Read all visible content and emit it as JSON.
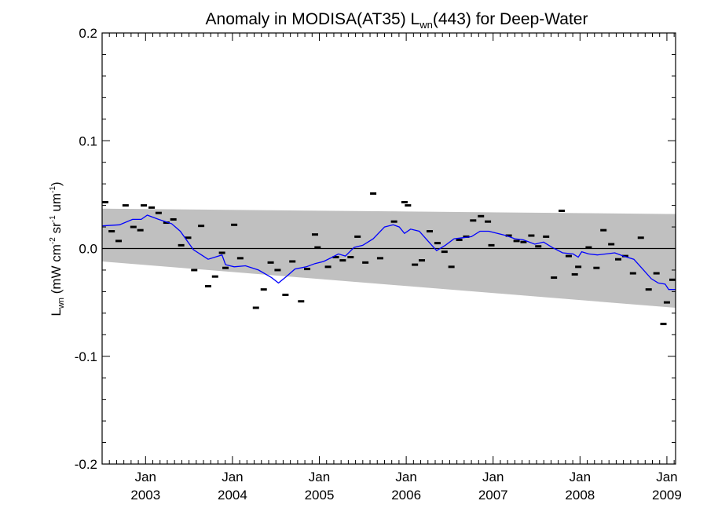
{
  "chart_data": {
    "type": "scatter",
    "title": "Anomaly in MODISA(AT35) L",
    "title_sub": "wn",
    "title_suffix": "(443) for Deep-Water",
    "ylabel_main": "L",
    "ylabel_sub": "wn",
    "ylabel_units": " (mW cm",
    "ylabel_sup1": "-2",
    "ylabel_sr": " sr",
    "ylabel_sup2": "-1",
    "ylabel_um": " um",
    "ylabel_sup3": "-1",
    "ylabel_close": ")",
    "xlim": [
      2002.5,
      2009.1
    ],
    "ylim": [
      -0.2,
      0.2
    ],
    "y_ticks": [
      {
        "value": -0.2,
        "label": "-0.2"
      },
      {
        "value": -0.1,
        "label": "-0.1"
      },
      {
        "value": 0.0,
        "label": "0.0"
      },
      {
        "value": 0.1,
        "label": "0.1"
      },
      {
        "value": 0.2,
        "label": "0.2"
      }
    ],
    "x_ticks": [
      {
        "value": 2003.0,
        "month": "Jan",
        "year": "2003"
      },
      {
        "value": 2004.0,
        "month": "Jan",
        "year": "2004"
      },
      {
        "value": 2005.0,
        "month": "Jan",
        "year": "2005"
      },
      {
        "value": 2006.0,
        "month": "Jan",
        "year": "2006"
      },
      {
        "value": 2007.0,
        "month": "Jan",
        "year": "2007"
      },
      {
        "value": 2008.0,
        "month": "Jan",
        "year": "2008"
      },
      {
        "value": 2009.0,
        "month": "Jan",
        "year": "2009"
      }
    ],
    "zero_line": 0.0,
    "band": {
      "color": "#c0c0c0",
      "upper": [
        [
          2002.5,
          0.037
        ],
        [
          2009.1,
          0.032
        ]
      ],
      "lower": [
        [
          2002.5,
          -0.012
        ],
        [
          2009.1,
          -0.055
        ]
      ]
    },
    "points_color": "#000000",
    "points": [
      [
        2002.52,
        0.043
      ],
      [
        2002.61,
        0.016
      ],
      [
        2002.69,
        0.007
      ],
      [
        2002.77,
        0.04
      ],
      [
        2002.86,
        0.02
      ],
      [
        2002.94,
        0.017
      ],
      [
        2002.98,
        0.04
      ],
      [
        2003.07,
        0.038
      ],
      [
        2003.15,
        0.033
      ],
      [
        2003.24,
        0.024
      ],
      [
        2003.32,
        0.027
      ],
      [
        2003.41,
        0.003
      ],
      [
        2003.49,
        0.01
      ],
      [
        2003.56,
        -0.02
      ],
      [
        2003.64,
        0.021
      ],
      [
        2003.72,
        -0.035
      ],
      [
        2003.8,
        -0.026
      ],
      [
        2003.88,
        -0.004
      ],
      [
        2003.92,
        -0.018
      ],
      [
        2004.02,
        0.022
      ],
      [
        2004.09,
        -0.009
      ],
      [
        2004.27,
        -0.055
      ],
      [
        2004.36,
        -0.038
      ],
      [
        2004.44,
        -0.013
      ],
      [
        2004.52,
        -0.02
      ],
      [
        2004.61,
        -0.043
      ],
      [
        2004.69,
        -0.012
      ],
      [
        2004.79,
        -0.049
      ],
      [
        2004.86,
        -0.019
      ],
      [
        2004.95,
        0.013
      ],
      [
        2004.98,
        0.001
      ],
      [
        2005.1,
        -0.017
      ],
      [
        2005.19,
        -0.008
      ],
      [
        2005.27,
        -0.011
      ],
      [
        2005.36,
        -0.008
      ],
      [
        2005.44,
        0.011
      ],
      [
        2005.53,
        -0.013
      ],
      [
        2005.62,
        0.051
      ],
      [
        2005.7,
        -0.009
      ],
      [
        2005.86,
        0.025
      ],
      [
        2005.98,
        0.043
      ],
      [
        2006.02,
        0.04
      ],
      [
        2006.1,
        -0.015
      ],
      [
        2006.18,
        -0.011
      ],
      [
        2006.27,
        0.016
      ],
      [
        2006.36,
        0.005
      ],
      [
        2006.44,
        -0.003
      ],
      [
        2006.52,
        -0.017
      ],
      [
        2006.61,
        0.008
      ],
      [
        2006.69,
        0.011
      ],
      [
        2006.77,
        0.026
      ],
      [
        2006.86,
        0.03
      ],
      [
        2006.94,
        0.025
      ],
      [
        2006.98,
        0.003
      ],
      [
        2007.18,
        0.012
      ],
      [
        2007.27,
        0.007
      ],
      [
        2007.35,
        0.006
      ],
      [
        2007.44,
        0.012
      ],
      [
        2007.52,
        0.002
      ],
      [
        2007.61,
        0.011
      ],
      [
        2007.7,
        -0.027
      ],
      [
        2007.79,
        0.035
      ],
      [
        2007.87,
        -0.007
      ],
      [
        2007.94,
        -0.024
      ],
      [
        2007.98,
        -0.017
      ],
      [
        2008.1,
        0.001
      ],
      [
        2008.19,
        -0.018
      ],
      [
        2008.27,
        0.017
      ],
      [
        2008.36,
        0.004
      ],
      [
        2008.44,
        -0.01
      ],
      [
        2008.52,
        -0.007
      ],
      [
        2008.61,
        -0.023
      ],
      [
        2008.7,
        0.01
      ],
      [
        2008.79,
        -0.038
      ],
      [
        2008.88,
        -0.023
      ],
      [
        2008.96,
        -0.07
      ],
      [
        2009.0,
        -0.05
      ],
      [
        2009.08,
        -0.029
      ]
    ],
    "trend_color": "#0000ff",
    "trend": [
      [
        2002.5,
        0.021
      ],
      [
        2002.7,
        0.022
      ],
      [
        2002.85,
        0.027
      ],
      [
        2002.95,
        0.027
      ],
      [
        2003.02,
        0.031
      ],
      [
        2003.15,
        0.027
      ],
      [
        2003.3,
        0.023
      ],
      [
        2003.4,
        0.016
      ],
      [
        2003.55,
        -0.001
      ],
      [
        2003.72,
        -0.01
      ],
      [
        2003.88,
        -0.006
      ],
      [
        2003.92,
        -0.015
      ],
      [
        2004.02,
        -0.017
      ],
      [
        2004.15,
        -0.016
      ],
      [
        2004.3,
        -0.02
      ],
      [
        2004.45,
        -0.027
      ],
      [
        2004.53,
        -0.032
      ],
      [
        2004.62,
        -0.026
      ],
      [
        2004.72,
        -0.019
      ],
      [
        2004.85,
        -0.017
      ],
      [
        2004.95,
        -0.014
      ],
      [
        2005.05,
        -0.012
      ],
      [
        2005.15,
        -0.008
      ],
      [
        2005.22,
        -0.005
      ],
      [
        2005.3,
        -0.007
      ],
      [
        2005.4,
        0.001
      ],
      [
        2005.5,
        0.003
      ],
      [
        2005.62,
        0.009
      ],
      [
        2005.75,
        0.02
      ],
      [
        2005.85,
        0.022
      ],
      [
        2005.92,
        0.02
      ],
      [
        2005.98,
        0.014
      ],
      [
        2006.05,
        0.018
      ],
      [
        2006.15,
        0.016
      ],
      [
        2006.25,
        0.007
      ],
      [
        2006.35,
        -0.002
      ],
      [
        2006.45,
        0.003
      ],
      [
        2006.55,
        0.009
      ],
      [
        2006.65,
        0.01
      ],
      [
        2006.75,
        0.011
      ],
      [
        2006.85,
        0.016
      ],
      [
        2006.95,
        0.016
      ],
      [
        2007.05,
        0.014
      ],
      [
        2007.15,
        0.012
      ],
      [
        2007.25,
        0.009
      ],
      [
        2007.35,
        0.008
      ],
      [
        2007.48,
        0.004
      ],
      [
        2007.58,
        0.006
      ],
      [
        2007.68,
        0.001
      ],
      [
        2007.8,
        -0.004
      ],
      [
        2007.92,
        -0.005
      ],
      [
        2007.98,
        -0.008
      ],
      [
        2008.02,
        -0.003
      ],
      [
        2008.1,
        -0.005
      ],
      [
        2008.2,
        -0.006
      ],
      [
        2008.3,
        -0.005
      ],
      [
        2008.4,
        -0.004
      ],
      [
        2008.5,
        -0.007
      ],
      [
        2008.62,
        -0.01
      ],
      [
        2008.72,
        -0.019
      ],
      [
        2008.82,
        -0.028
      ],
      [
        2008.9,
        -0.032
      ],
      [
        2008.98,
        -0.033
      ],
      [
        2009.02,
        -0.038
      ],
      [
        2009.1,
        -0.038
      ]
    ]
  }
}
